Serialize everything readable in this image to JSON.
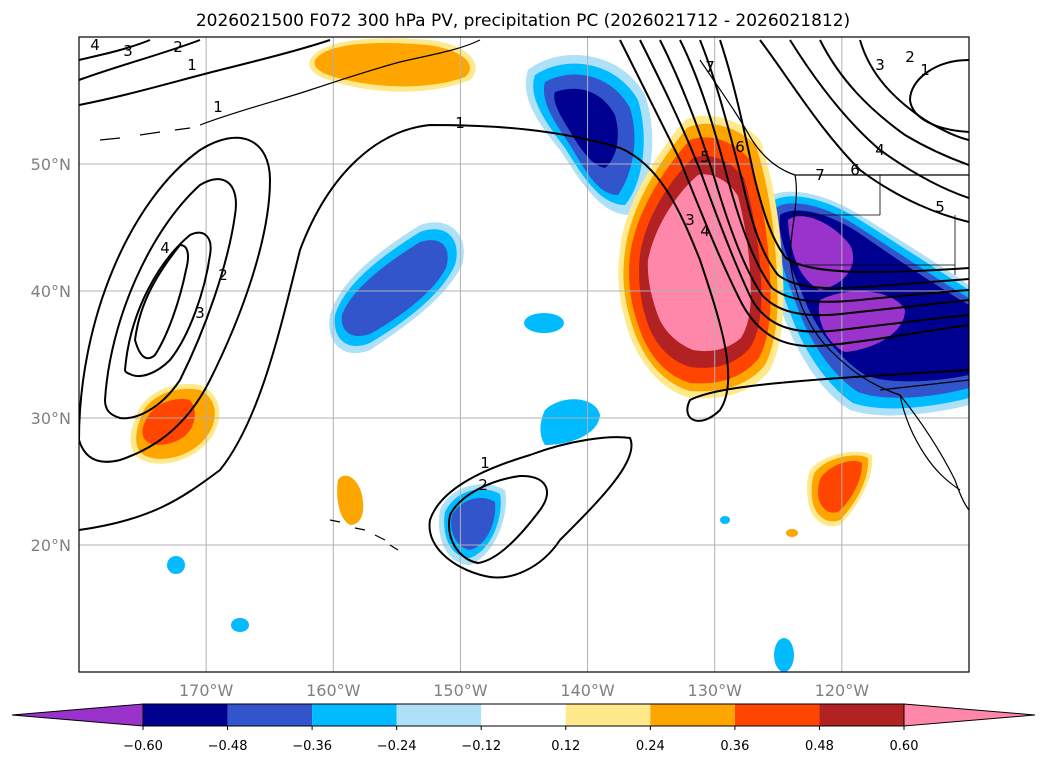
{
  "title": "2026021500 F072 300 hPa PV, precipitation PC (2026021712 - 2026021812)",
  "map": {
    "lon_ticks": [
      {
        "lon": -170,
        "label": "170°W"
      },
      {
        "lon": -160,
        "label": "160°W"
      },
      {
        "lon": -150,
        "label": "150°W"
      },
      {
        "lon": -140,
        "label": "140°W"
      },
      {
        "lon": -130,
        "label": "130°W"
      },
      {
        "lon": -120,
        "label": "120°W"
      }
    ],
    "lat_ticks": [
      {
        "lat": 50,
        "label": "50°N"
      },
      {
        "lat": 40,
        "label": "40°N"
      },
      {
        "lat": 30,
        "label": "30°N"
      },
      {
        "lat": 20,
        "label": "20°N"
      }
    ],
    "extent": {
      "lon_min": -180,
      "lon_max": -110,
      "lat_min": 10,
      "lat_max": 60
    }
  },
  "colorbar": {
    "levels": [
      "-0.60",
      "-0.48",
      "-0.36",
      "-0.24",
      "-0.12",
      "0.12",
      "0.24",
      "0.36",
      "0.48",
      "0.60"
    ],
    "level_values": [
      -0.6,
      -0.48,
      -0.36,
      -0.24,
      -0.12,
      0.12,
      0.24,
      0.36,
      0.48,
      0.6
    ],
    "colors": [
      "#9933cc",
      "#000090",
      "#3355cc",
      "#00bbff",
      "#aee0f8",
      "#ffffff",
      "#ffe98a",
      "#ffa500",
      "#ff4500",
      "#b22222",
      "#ff88aa"
    ]
  },
  "contour_labels": [
    "4",
    "3",
    "2",
    "1",
    "1",
    "1",
    "4",
    "3",
    "2",
    "1",
    "2",
    "3",
    "4",
    "5",
    "6",
    "7",
    "3",
    "2",
    "1",
    "4",
    "5",
    "6",
    "7"
  ]
}
